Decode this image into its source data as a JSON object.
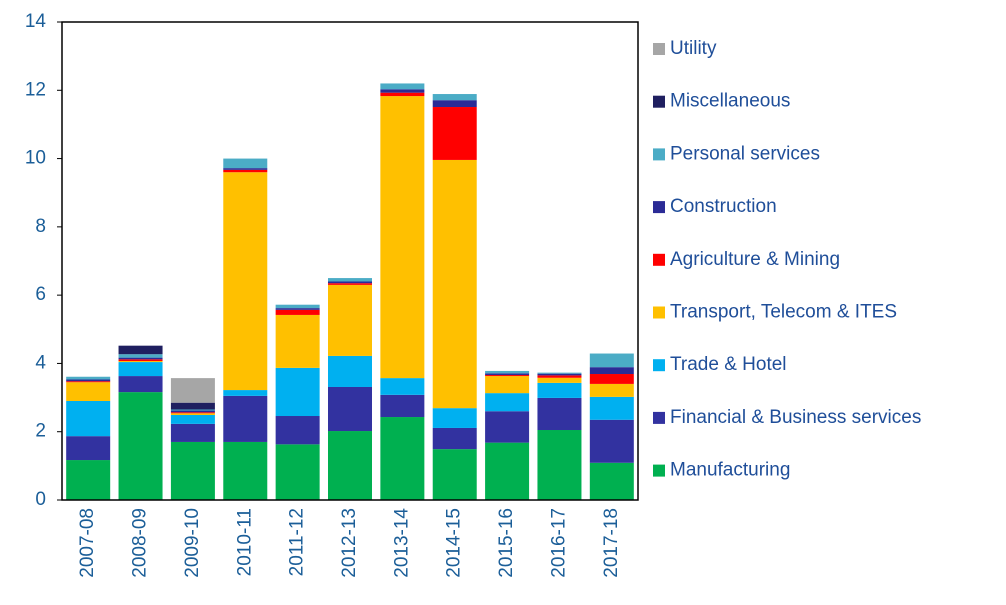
{
  "chart_data": {
    "type": "stacked_bar",
    "categories": [
      "2007-08",
      "2008-09",
      "2009-10",
      "2010-11",
      "2011-12",
      "2012-13",
      "2013-14",
      "2014-15",
      "2015-16",
      "2016-17",
      "2017-18"
    ],
    "series": [
      {
        "name": "Manufacturing",
        "color": "#00b050",
        "values": [
          1.17,
          3.16,
          1.7,
          1.7,
          1.63,
          2.02,
          2.43,
          1.49,
          1.68,
          2.05,
          1.09
        ]
      },
      {
        "name": "Financial & Business services",
        "color": "#3232a0",
        "values": [
          0.7,
          0.47,
          0.53,
          1.35,
          0.83,
          1.29,
          0.65,
          0.62,
          0.92,
          0.94,
          1.26
        ]
      },
      {
        "name": "Trade & Hotel",
        "color": "#00b0f0",
        "values": [
          1.03,
          0.41,
          0.26,
          0.17,
          1.41,
          0.91,
          0.49,
          0.58,
          0.53,
          0.44,
          0.67
        ]
      },
      {
        "name": "Transport, Telecom & ITES",
        "color": "#ffc000",
        "values": [
          0.55,
          0.03,
          0.05,
          6.38,
          1.55,
          2.08,
          8.26,
          7.27,
          0.5,
          0.15,
          0.38
        ]
      },
      {
        "name": "Agriculture & Mining",
        "color": "#ff0000",
        "values": [
          0.03,
          0.05,
          0.03,
          0.07,
          0.15,
          0.05,
          0.1,
          1.55,
          0.03,
          0.07,
          0.29
        ]
      },
      {
        "name": "Construction",
        "color": "#2b2b96",
        "values": [
          0.05,
          0.05,
          0.05,
          0.05,
          0.05,
          0.05,
          0.1,
          0.2,
          0.05,
          0.05,
          0.2
        ]
      },
      {
        "name": "Personal services",
        "color": "#4bacc6",
        "values": [
          0.08,
          0.1,
          0.03,
          0.28,
          0.1,
          0.1,
          0.17,
          0.18,
          0.07,
          0.03,
          0.4
        ]
      },
      {
        "name": "Miscellaneous",
        "color": "#1f1f60",
        "values": [
          0,
          0.25,
          0.2,
          0,
          0,
          0,
          0,
          0,
          0,
          0,
          0
        ]
      },
      {
        "name": "Utility",
        "color": "#a6a6a6",
        "values": [
          0,
          0,
          0.72,
          0,
          0,
          0,
          0,
          0,
          0,
          0,
          0
        ]
      }
    ],
    "ylim": [
      0,
      14
    ],
    "yticks": [
      0,
      2,
      4,
      6,
      8,
      10,
      12,
      14
    ]
  }
}
